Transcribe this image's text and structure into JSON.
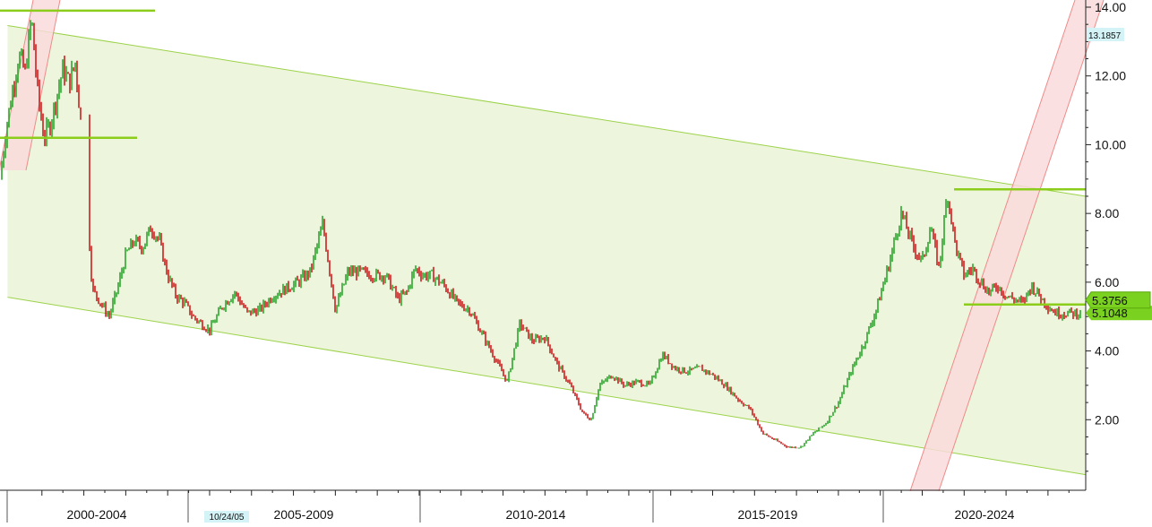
{
  "chart_data": {
    "type": "line",
    "title": "",
    "xlabel": "",
    "ylabel": "",
    "x_range": [
      1999.0,
      2024.9
    ],
    "ylim": [
      0.0,
      14.0
    ],
    "y_ticks": [
      2,
      4,
      6,
      8,
      10,
      12,
      14
    ],
    "y_tick_labels": [
      "2.00",
      "4.00",
      "6.00",
      "8.00",
      "10.00",
      "12.00",
      "14.00"
    ],
    "x_period_labels": [
      "2000-2004",
      "2005-2009",
      "2010-2014",
      "2015-2019",
      "2020-2024"
    ],
    "date_stamp": "10/24/05",
    "series": [
      {
        "values_x": [
          1999.0,
          1999.15,
          1999.3,
          1999.45,
          1999.6,
          1999.75,
          1999.9,
          2000.05,
          2000.2,
          2000.35,
          2000.5,
          2000.65,
          2000.8,
          2000.9,
          2001.0,
          2001.05,
          2001.2,
          2001.4,
          2001.6,
          2001.8,
          2002.0,
          2002.2,
          2002.4,
          2002.6,
          2002.8,
          2003.0,
          2003.2,
          2003.4,
          2003.6,
          2003.8,
          2004.0,
          2004.3,
          2004.6,
          2004.9,
          2005.2,
          2005.5,
          2005.8,
          2006.1,
          2006.4,
          2006.7,
          2007.0,
          2007.3,
          2007.6,
          2007.9,
          2008.2,
          2008.5,
          2008.7,
          2008.9,
          2009.1,
          2009.3,
          2009.6,
          2009.9,
          2010.2,
          2010.5,
          2010.8,
          2011.1,
          2011.4,
          2011.7,
          2012.0,
          2012.3,
          2012.6,
          2012.9,
          2013.1,
          2013.3,
          2013.6,
          2013.9,
          2014.2,
          2014.5,
          2014.8,
          2015.1,
          2015.4,
          2015.7,
          2016.0,
          2016.3,
          2016.6,
          2016.9,
          2017.2,
          2017.5,
          2017.8,
          2018.1,
          2018.4,
          2018.7,
          2019.0,
          2019.3,
          2019.6,
          2019.9,
          2020.2,
          2020.5,
          2020.8,
          2021.0,
          2021.2,
          2021.4,
          2021.6,
          2021.8,
          2022.0,
          2022.2,
          2022.4,
          2022.6,
          2022.8,
          2023.0,
          2023.2,
          2023.4,
          2023.6,
          2023.8,
          2024.0,
          2024.2,
          2024.5,
          2024.8
        ],
        "values_y": [
          9.0,
          10.5,
          11.6,
          12.6,
          12.1,
          13.7,
          11.5,
          10.2,
          10.6,
          11.4,
          12.2,
          11.8,
          12.4,
          11.0,
          9.9,
          8.9,
          5.8,
          5.4,
          5.0,
          5.8,
          6.8,
          7.2,
          7.0,
          7.6,
          7.2,
          6.2,
          5.6,
          5.4,
          5.0,
          4.8,
          4.6,
          5.3,
          5.7,
          5.1,
          5.2,
          5.6,
          5.8,
          6.0,
          6.3,
          7.7,
          5.2,
          6.3,
          6.3,
          6.2,
          6.2,
          5.5,
          5.7,
          6.4,
          6.2,
          6.2,
          5.9,
          5.4,
          5.2,
          4.5,
          3.8,
          3.1,
          4.8,
          4.3,
          4.4,
          3.6,
          3.0,
          2.2,
          2.0,
          3.0,
          3.3,
          3.0,
          3.1,
          3.0,
          3.9,
          3.5,
          3.4,
          3.5,
          3.3,
          3.0,
          2.6,
          2.3,
          1.6,
          1.4,
          1.2,
          1.2,
          1.6,
          1.9,
          2.5,
          3.4,
          4.2,
          5.2,
          6.5,
          8.0,
          7.0,
          6.6,
          7.6,
          6.4,
          8.6,
          7.0,
          6.2,
          6.4,
          6.0,
          5.7,
          5.9,
          5.6,
          5.5,
          5.4,
          5.9,
          5.6,
          5.3,
          5.1,
          5.1,
          5.1
        ]
      }
    ],
    "annotations": {
      "last_price": "5.3756",
      "last_price_2": "5.1048",
      "level_marker": "13.1857",
      "horizontal_levels": [
        13.9,
        10.2,
        8.7,
        5.35
      ],
      "channel_upper": {
        "x": [
          1999.0,
          2024.9
        ],
        "y": [
          13.5,
          8.5
        ]
      },
      "channel_lower": {
        "x": [
          1999.0,
          2024.9
        ],
        "y": [
          5.6,
          0.4
        ]
      }
    },
    "colors": {
      "up": "#2ea62e",
      "down": "#cc1f1f",
      "channel_fill": "#edf6dc",
      "channel_line": "#9cd24a",
      "level_line": "#8ccc1a",
      "trend_band_fill": "#f9dada",
      "trend_band_line": "#f08a8a",
      "price_flag": "#7ad11f",
      "marker_flag": "#d3f3f7"
    },
    "grid": false,
    "legend": "none"
  }
}
